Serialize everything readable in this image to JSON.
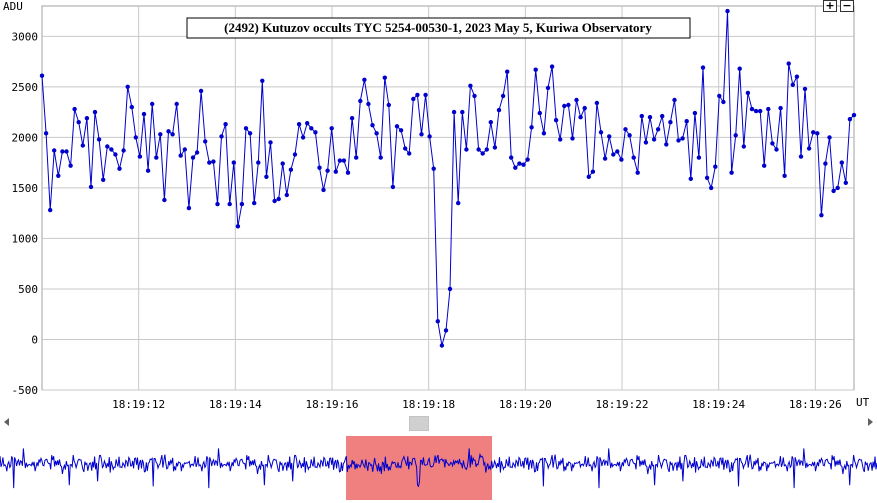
{
  "chart_data": {
    "type": "line",
    "title": "(2492) Kutuzov occults TYC 5254-00530-1, 2023 May 5, Kuriwa Observatory",
    "ylabel": "ADU",
    "xlabel": "UT",
    "ylim": [
      -500,
      3300
    ],
    "yticks": [
      -500,
      0,
      500,
      1000,
      1500,
      2000,
      2500,
      3000
    ],
    "xlim": [
      0,
      8.4
    ],
    "xticks": [
      1,
      2,
      3,
      4,
      5,
      6,
      7,
      8
    ],
    "xtick_labels": [
      "18:19:12",
      "18:19:14",
      "18:19:16",
      "18:19:18",
      "18:19:20",
      "18:19:22",
      "18:19:24",
      "18:19:26"
    ],
    "grid": true,
    "line_color": "#0000cc",
    "series": [
      {
        "values": [
          2610,
          2040,
          1280,
          1870,
          1620,
          1860,
          1860,
          1720,
          2280,
          2150,
          1920,
          2190,
          1510,
          2250,
          1980,
          1580,
          1910,
          1880,
          1830,
          1690,
          1870,
          2500,
          2300,
          2000,
          1810,
          2230,
          1670,
          2330,
          1800,
          2030,
          1380,
          2060,
          2030,
          2330,
          1820,
          1880,
          1300,
          1800,
          1850,
          2460,
          1960,
          1750,
          1760,
          1340,
          2010,
          2130,
          1340,
          1750,
          1120,
          1340,
          2090,
          2040,
          1350,
          1750,
          2560,
          1610,
          1950,
          1370,
          1390,
          1740,
          1430,
          1680,
          1830,
          2130,
          2000,
          2140,
          2090,
          2050,
          1700,
          1480,
          1670,
          2090,
          1660,
          1770,
          1770,
          1650,
          2190,
          1800,
          2360,
          2570,
          2330,
          2120,
          2040,
          1800,
          2590,
          2320,
          1510,
          2110,
          2070,
          1890,
          1840,
          2380,
          2420,
          2030,
          2420,
          2010,
          1690,
          180,
          -60,
          90,
          500,
          2250,
          1350,
          2250,
          1880,
          2510,
          2410,
          1880,
          1840,
          1880,
          2150,
          1900,
          2270,
          2410,
          2650,
          1800,
          1700,
          1740,
          1730,
          1780,
          2100,
          2670,
          2240,
          2040,
          2490,
          2700,
          2170,
          1980,
          2310,
          2320,
          1990,
          2370,
          2200,
          2290,
          1610,
          1660,
          2340,
          2050,
          1790,
          2010,
          1830,
          1860,
          1780,
          2080,
          2020,
          1800,
          1650,
          2210,
          1950,
          2200,
          1980,
          2080,
          2210,
          1930,
          2150,
          2370,
          1970,
          1990,
          2160,
          1590,
          2240,
          1800,
          2690,
          1600,
          1500,
          1710,
          2410,
          2350,
          3250,
          1650,
          2020,
          2680,
          1910,
          2440,
          2280,
          2260,
          2260,
          1720,
          2280,
          1940,
          1880,
          2290,
          1620,
          2730,
          2520,
          2600,
          1810,
          2480,
          1890,
          2050,
          2040,
          1230,
          1740,
          2000,
          1470,
          1500,
          1750,
          1550,
          2180,
          2220
        ]
      }
    ]
  },
  "overview": {
    "highlight_color": "#f08080"
  },
  "zoom": {
    "plus_label": "+",
    "minus_label": "−"
  }
}
